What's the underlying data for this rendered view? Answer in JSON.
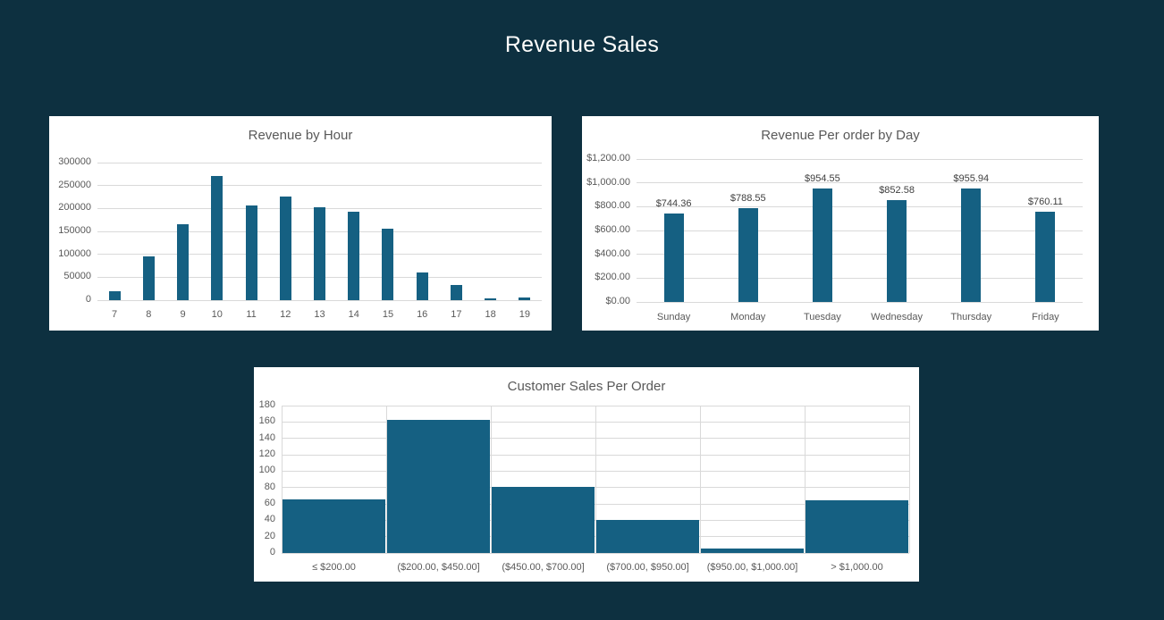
{
  "page": {
    "title": "Revenue Sales",
    "colors": {
      "background": "#0d3040",
      "panel": "#ffffff",
      "bar": "#156082",
      "grid": "#d9d9d9",
      "axis_text": "#595959",
      "chart_title_text": "#595959",
      "data_label_text": "#404040",
      "page_title_text": "#fdfdfb"
    }
  },
  "chart_data": [
    {
      "type": "bar",
      "title": "Revenue by Hour",
      "categories": [
        "7",
        "8",
        "9",
        "10",
        "11",
        "12",
        "13",
        "14",
        "15",
        "16",
        "17",
        "18",
        "19"
      ],
      "values": [
        20000,
        95000,
        166000,
        271000,
        207000,
        226000,
        203000,
        193000,
        155000,
        60000,
        33000,
        4000,
        6000
      ],
      "xlabel": "",
      "ylabel": "",
      "ylim": [
        0,
        300000
      ],
      "yticks": [
        "0",
        "50000",
        "100000",
        "150000",
        "200000",
        "250000",
        "300000"
      ],
      "grid": "horizontal",
      "legend": "none",
      "data_labels": null
    },
    {
      "type": "bar",
      "title": "Revenue Per order by Day",
      "categories": [
        "Sunday",
        "Monday",
        "Tuesday",
        "Wednesday",
        "Thursday",
        "Friday"
      ],
      "values": [
        744.36,
        788.55,
        954.55,
        852.58,
        955.94,
        760.11
      ],
      "data_labels": [
        "$744.36",
        "$788.55",
        "$954.55",
        "$852.58",
        "$955.94",
        "$760.11"
      ],
      "xlabel": "",
      "ylabel": "",
      "ylim": [
        0,
        1200
      ],
      "yticks": [
        "$0.00",
        "$200.00",
        "$400.00",
        "$600.00",
        "$800.00",
        "$1,000.00",
        "$1,200.00"
      ],
      "grid": "horizontal",
      "legend": "none"
    },
    {
      "type": "bar",
      "title": "Customer Sales Per Order",
      "categories": [
        "≤ $200.00",
        "($200.00, $450.00]",
        "($450.00, $700.00]",
        "($700.00, $950.00]",
        "($950.00, $1,000.00]",
        "> $1,000.00"
      ],
      "values": [
        65,
        163,
        81,
        40,
        5,
        64
      ],
      "xlabel": "",
      "ylabel": "",
      "ylim": [
        0,
        180
      ],
      "yticks": [
        "0",
        "20",
        "40",
        "60",
        "80",
        "100",
        "120",
        "140",
        "160",
        "180"
      ],
      "grid": "both",
      "legend": "none",
      "data_labels": null
    }
  ]
}
